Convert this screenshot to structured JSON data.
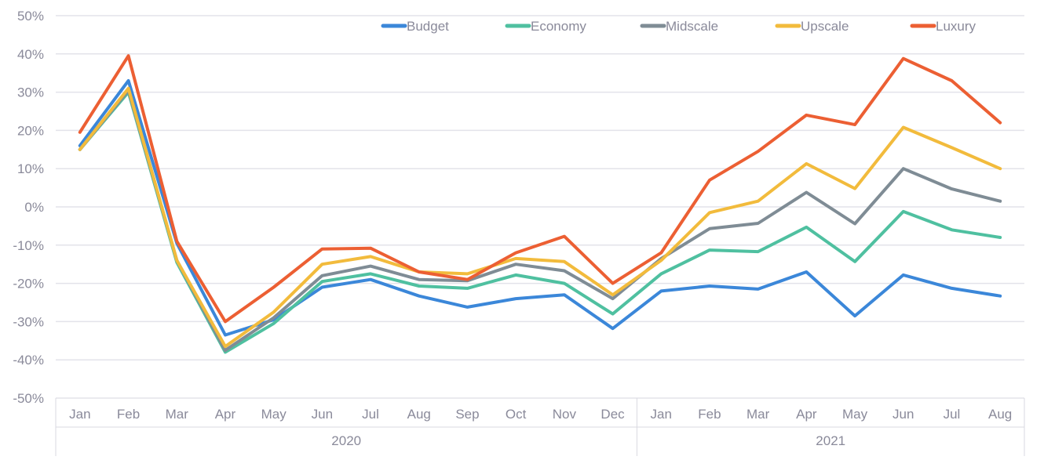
{
  "chart_data": {
    "type": "line",
    "title": "",
    "xlabel": "",
    "ylabel": "",
    "ylim": [
      -50,
      50
    ],
    "yticks": [
      "-50%",
      "-40%",
      "-30%",
      "-20%",
      "-10%",
      "0%",
      "10%",
      "20%",
      "30%",
      "40%",
      "50%"
    ],
    "ytick_values": [
      -50,
      -40,
      -30,
      -20,
      -10,
      0,
      10,
      20,
      30,
      40,
      50
    ],
    "categories": [
      "Jan",
      "Feb",
      "Mar",
      "Apr",
      "May",
      "Jun",
      "Jul",
      "Aug",
      "Sep",
      "Oct",
      "Nov",
      "Dec",
      "Jan",
      "Feb",
      "Mar",
      "Apr",
      "May",
      "Jun",
      "Jul",
      "Aug"
    ],
    "groups": [
      {
        "label": "2020",
        "count": 12
      },
      {
        "label": "2021",
        "count": 8
      }
    ],
    "grid": true,
    "legend_position": "top-right",
    "series": [
      {
        "name": "Budget",
        "color": "#3b87d9",
        "values": [
          16,
          33,
          -9.5,
          -33.5,
          -29.5,
          -21,
          -19,
          -23.3,
          -26.2,
          -24,
          -23,
          -31.8,
          -22,
          -20.7,
          -21.5,
          -17,
          -28.5,
          -17.8,
          -21.3,
          -23.3
        ]
      },
      {
        "name": "Economy",
        "color": "#4fc0a0",
        "values": [
          15,
          30,
          -14.5,
          -38,
          -30.5,
          -19.5,
          -17.5,
          -20.7,
          -21.3,
          -17.8,
          -20,
          -28,
          -17.5,
          -11.3,
          -11.7,
          -5.3,
          -14.3,
          -1.2,
          -6,
          -8
        ]
      },
      {
        "name": "Midscale",
        "color": "#7f8c95",
        "values": [
          15,
          30.5,
          -14,
          -37.5,
          -29,
          -18,
          -15.5,
          -19,
          -19.3,
          -15,
          -16.7,
          -24,
          -13.5,
          -5.7,
          -4.3,
          3.8,
          -4.4,
          10,
          4.7,
          1.5
        ]
      },
      {
        "name": "Upscale",
        "color": "#f2bb3c",
        "values": [
          15,
          31,
          -14,
          -36.5,
          -27.5,
          -15,
          -13,
          -17,
          -17.5,
          -13.5,
          -14.3,
          -23,
          -14,
          -1.5,
          1.5,
          11.3,
          4.8,
          20.8,
          15.5,
          10
        ]
      },
      {
        "name": "Luxury",
        "color": "#ec5f33",
        "values": [
          19.5,
          39.5,
          -9,
          -30,
          -21,
          -11,
          -10.8,
          -17,
          -19,
          -12,
          -7.7,
          -20,
          -12,
          7,
          14.5,
          24,
          21.5,
          38.8,
          33,
          22
        ]
      }
    ]
  }
}
